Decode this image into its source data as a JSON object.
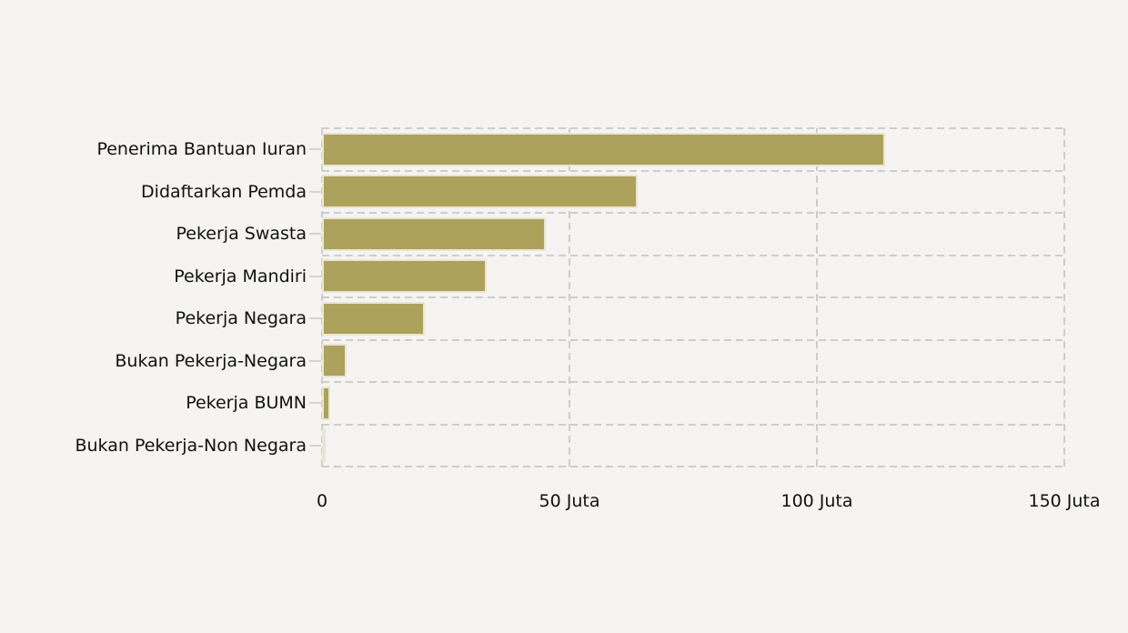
{
  "chart_data": {
    "type": "bar",
    "orientation": "horizontal",
    "title": "",
    "xlabel": "",
    "ylabel": "",
    "categories": [
      "Penerima Bantuan Iuran",
      "Didaftarkan Pemda",
      "Pekerja Swasta",
      "Pekerja Mandiri",
      "Pekerja Negara",
      "Bukan Pekerja-Negara",
      "Pekerja BUMN",
      "Bukan Pekerja-Non Negara"
    ],
    "values": [
      113.8,
      63.7,
      45.3,
      33.3,
      20.8,
      4.9,
      1.7,
      0.6
    ],
    "unit": "Juta",
    "xlim": [
      0,
      150
    ],
    "x_ticks": [
      {
        "value": 0,
        "label": "0"
      },
      {
        "value": 50,
        "label": "50 Juta"
      },
      {
        "value": 100,
        "label": "100 Juta"
      },
      {
        "value": 150,
        "label": "150 Juta"
      }
    ],
    "grid": "dashed",
    "legend": "none",
    "colors": {
      "bar_fill": "#ada25b",
      "bar_edge": "#e9e6d4",
      "background": "#f5f4f2",
      "gridline": "#cdcdcd",
      "tick": "#d4d4d4",
      "text": "#111111"
    }
  }
}
